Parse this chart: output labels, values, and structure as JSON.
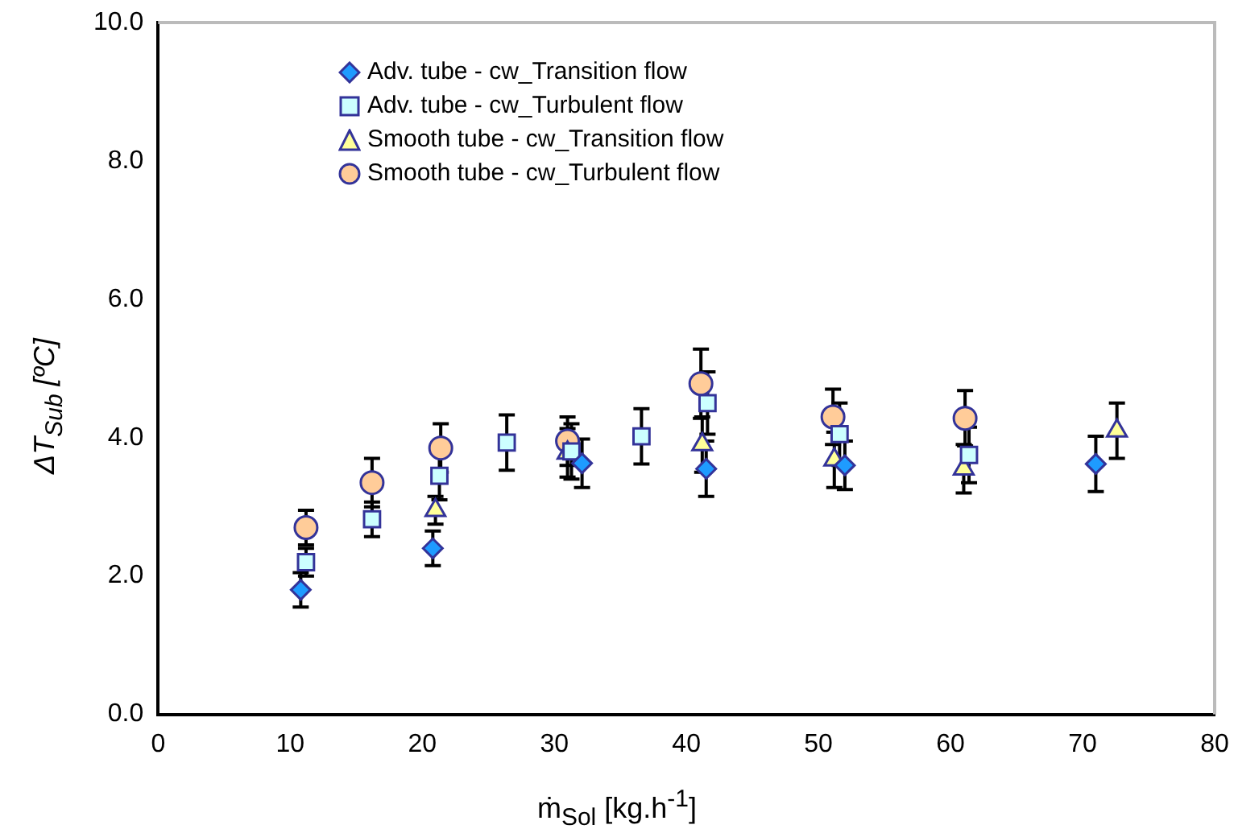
{
  "chart_data": {
    "type": "scatter",
    "xlabel": "ṁ$_{Sol}$ [kg.h$^{-1}$]",
    "ylabel": "ΔT$_{Sub}$ [ºC]",
    "xlim": [
      0,
      80
    ],
    "xticks": [
      0,
      10,
      20,
      30,
      40,
      50,
      60,
      70,
      80
    ],
    "ylim": [
      0,
      10
    ],
    "yticks": [
      {
        "value": 0,
        "label": "0.0"
      },
      {
        "value": 2,
        "label": "2.0"
      },
      {
        "value": 4,
        "label": "4.0"
      },
      {
        "value": 6,
        "label": "6.0"
      },
      {
        "value": 8,
        "label": "8.0"
      },
      {
        "value": 10,
        "label": "10.0"
      }
    ],
    "grid": false,
    "legend": "top left",
    "series": [
      {
        "name": "Adv. tube - cw_Transition flow",
        "color": "#1e9bff",
        "marker": "diamond",
        "x": [
          10.8,
          20.8,
          32.1,
          41.5,
          52,
          71
        ],
        "values": [
          1.8,
          2.4,
          3.63,
          3.55,
          3.6,
          3.62
        ],
        "errors": [
          0.25,
          0.25,
          0.35,
          0.4,
          0.35,
          0.4
        ]
      },
      {
        "name": "Adv. tube - cw_Turbulent flow",
        "color": "#ccffff",
        "marker": "square",
        "x": [
          11.2,
          16.2,
          21.3,
          26.4,
          31.3,
          36.6,
          41.6,
          51.6,
          61.4
        ],
        "values": [
          2.2,
          2.82,
          3.45,
          3.93,
          3.8,
          4.02,
          4.5,
          4.05,
          3.75
        ],
        "errors": [
          0.2,
          0.25,
          0.35,
          0.4,
          0.4,
          0.4,
          0.45,
          0.45,
          0.4
        ]
      },
      {
        "name": "Smooth tube - cw_Transition flow",
        "color": "#ffff99",
        "marker": "triangle",
        "x": [
          21,
          31,
          41.2,
          51.2,
          61,
          72.6
        ],
        "values": [
          2.95,
          3.78,
          3.9,
          3.68,
          3.55,
          4.1
        ],
        "errors": [
          0.2,
          0.35,
          0.4,
          0.4,
          0.35,
          0.4
        ]
      },
      {
        "name": "Smooth tube - cw_Turbulent flow",
        "color": "#ffcc99",
        "marker": "circle",
        "x": [
          11.2,
          16.2,
          21.4,
          31,
          41.1,
          51.1,
          61.1
        ],
        "values": [
          2.7,
          3.35,
          3.85,
          3.95,
          4.78,
          4.3,
          4.28
        ],
        "errors": [
          0.25,
          0.35,
          0.35,
          0.35,
          0.5,
          0.4,
          0.4
        ]
      }
    ]
  }
}
